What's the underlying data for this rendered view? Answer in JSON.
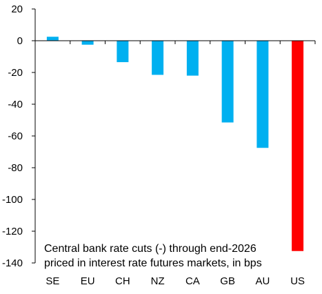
{
  "chart_data": {
    "type": "bar",
    "categories": [
      "SE",
      "EU",
      "CH",
      "NZ",
      "CA",
      "GB",
      "AU",
      "US"
    ],
    "values": [
      2.5,
      -2.5,
      -13.5,
      -21.5,
      -22,
      -51.5,
      -67.5,
      -132.5
    ],
    "ylim": [
      -140,
      20
    ],
    "yticks": [
      20,
      0,
      -20,
      -40,
      -60,
      -80,
      -100,
      -120,
      -140
    ],
    "annotation": [
      "Central bank rate cuts (-) through end-2026",
      "priced in interest rate futures markets, in bps"
    ],
    "bar_colors": [
      "#00B0F0",
      "#00B0F0",
      "#00B0F0",
      "#00B0F0",
      "#00B0F0",
      "#00B0F0",
      "#00B0F0",
      "#FF0000"
    ],
    "grid": false,
    "legend": "none"
  }
}
